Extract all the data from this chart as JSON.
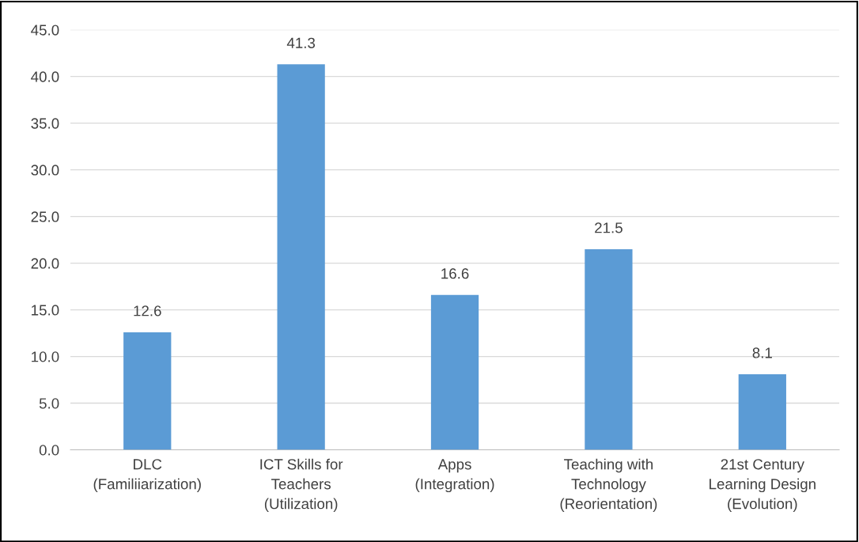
{
  "chart_data": {
    "type": "bar",
    "categories": [
      "DLC\n(Familiiarization)",
      "ICT Skills for\nTeachers\n(Utilization)",
      "Apps\n(Integration)",
      "Teaching with\nTechnology\n(Reorientation)",
      "21st Century\nLearning Design\n(Evolution)"
    ],
    "values": [
      12.6,
      41.3,
      16.6,
      21.5,
      8.1
    ],
    "color": "#5b9bd5",
    "ylim": [
      0,
      45
    ],
    "yticks": [
      {
        "value": 0,
        "label": "0.0"
      },
      {
        "value": 5,
        "label": "5.0"
      },
      {
        "value": 10,
        "label": "10.0"
      },
      {
        "value": 15,
        "label": "15.0"
      },
      {
        "value": 20,
        "label": "20.0"
      },
      {
        "value": 25,
        "label": "25.0"
      },
      {
        "value": 30,
        "label": "30.0"
      },
      {
        "value": 35,
        "label": "35.0"
      },
      {
        "value": 40,
        "label": "40.0"
      },
      {
        "value": 45,
        "label": "45.0"
      }
    ],
    "grid": "y",
    "data_labels": true
  }
}
